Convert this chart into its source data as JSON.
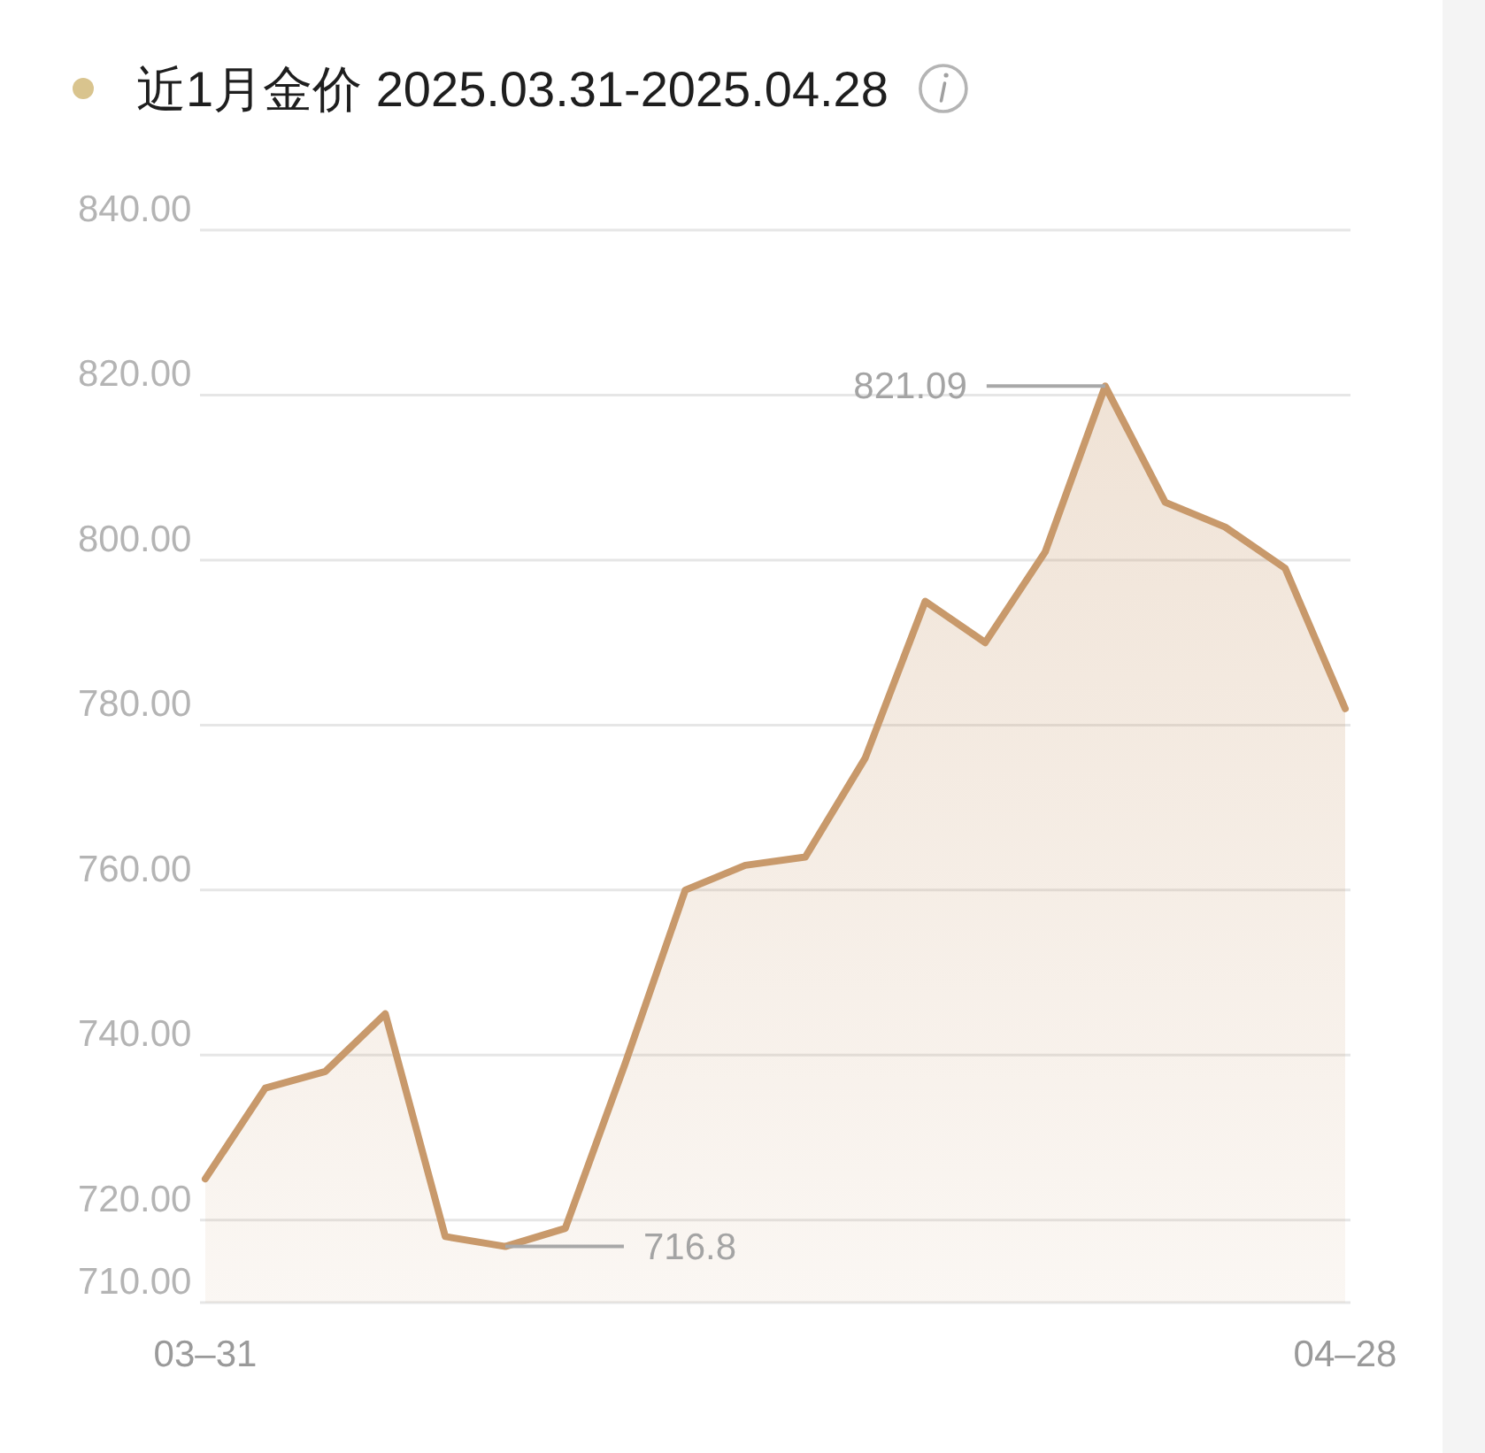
{
  "chart_data": {
    "type": "area",
    "title": "近1月金价 2025.03.31-2025.04.28",
    "categories": [
      "03–31",
      null,
      null,
      null,
      null,
      null,
      null,
      null,
      null,
      null,
      null,
      null,
      null,
      null,
      null,
      null,
      null,
      null,
      null,
      "04–28"
    ],
    "values": [
      725,
      736,
      738,
      745,
      718,
      716.8,
      719,
      739,
      760,
      763,
      764,
      776,
      795,
      790,
      801,
      821.09,
      807,
      804,
      799,
      782
    ],
    "value_labels": [
      null,
      null,
      null,
      null,
      null,
      "716.8",
      null,
      null,
      null,
      null,
      null,
      null,
      null,
      null,
      null,
      "821.09",
      null,
      null,
      null,
      null
    ],
    "color": "#c8996b",
    "ylim": [
      710,
      840
    ],
    "yticks": [
      {
        "value": 710,
        "label": "710.00"
      },
      {
        "value": 720,
        "label": "720.00"
      },
      {
        "value": 740,
        "label": "740.00"
      },
      {
        "value": 760,
        "label": "760.00"
      },
      {
        "value": 780,
        "label": "780.00"
      },
      {
        "value": 800,
        "label": "800.00"
      },
      {
        "value": 820,
        "label": "820.00"
      },
      {
        "value": 840,
        "label": "840.00"
      }
    ],
    "grid": "y"
  }
}
